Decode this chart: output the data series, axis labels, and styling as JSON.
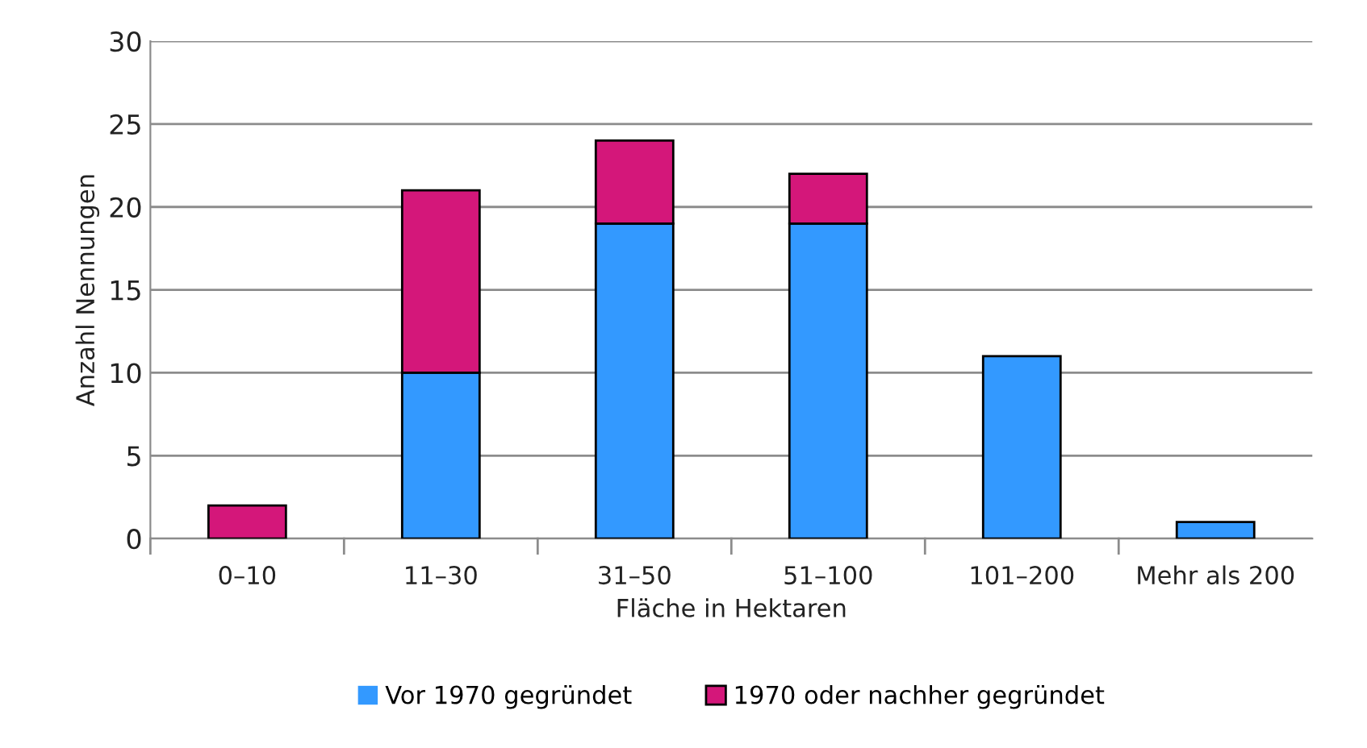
{
  "chart_data": {
    "type": "bar",
    "stacked": true,
    "xlabel": "Fläche in Hektaren",
    "ylabel": "Anzahl Nennungen",
    "categories": [
      "0–10",
      "11–30",
      "31–50",
      "51–100",
      "101–200",
      "Mehr als 200"
    ],
    "series": [
      {
        "name": "Vor 1970 gegründet",
        "color": "#3399ff",
        "values": [
          0,
          10,
          19,
          19,
          11,
          1
        ]
      },
      {
        "name": "1970 oder nachher gegründet",
        "color": "#d4177a",
        "values": [
          2,
          11,
          5,
          3,
          0,
          0
        ]
      }
    ],
    "ylim": [
      0,
      30
    ],
    "yticks": [
      0,
      5,
      10,
      15,
      20,
      25,
      30
    ],
    "grid": "y",
    "legend": "bottom"
  }
}
